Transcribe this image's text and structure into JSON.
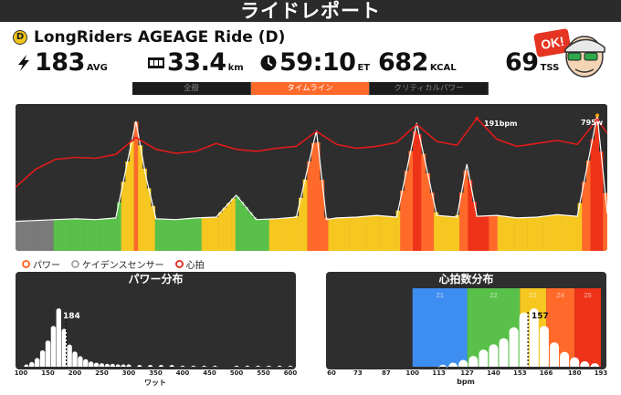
{
  "app": {
    "title": "ライドレポート"
  },
  "ride": {
    "badge": "D",
    "name": "LongRiders AGEAGE Ride (D)"
  },
  "stats": {
    "power": {
      "value": "183",
      "unit": "AVG"
    },
    "distance": {
      "value": "33.4",
      "unit": "km"
    },
    "time": {
      "value": "59:10",
      "unit": "ET"
    },
    "calories": {
      "value": "682",
      "unit": "KCAL"
    },
    "tss": {
      "value": "69",
      "unit": "TSS"
    }
  },
  "avatar": {
    "badge_text": "OK!"
  },
  "tabs": [
    {
      "label": "全般",
      "active": false
    },
    {
      "label": "タイムライン",
      "active": true
    },
    {
      "label": "クリティカルパワー",
      "active": false
    }
  ],
  "timeline": {
    "peak_hr_label": "191bpm",
    "peak_power_label": "795w"
  },
  "legend": {
    "power": "パワー",
    "cadence": "ケイデンスセンサー",
    "heart_rate": "心拍"
  },
  "power_distribution": {
    "title": "パワー分布",
    "marker_label": "184",
    "axis_label": "ワット",
    "ticks": [
      "100",
      "150",
      "200",
      "250",
      "300",
      "350",
      "400",
      "450",
      "500",
      "550",
      "600"
    ]
  },
  "hr_distribution": {
    "title": "心拍数分布",
    "marker_label": "157",
    "axis_label": "bpm",
    "ticks": [
      "60",
      "73",
      "87",
      "100",
      "113",
      "127",
      "140",
      "153",
      "166",
      "180",
      "193"
    ],
    "zones": [
      {
        "label": "Z1",
        "color": "#3d8ef0"
      },
      {
        "label": "Z2",
        "color": "#59c04a"
      },
      {
        "label": "Z3",
        "color": "#f5c720"
      },
      {
        "label": "Z4",
        "color": "#ff6a2b"
      },
      {
        "label": "Z5",
        "color": "#ee3318"
      }
    ]
  },
  "chart_data": [
    {
      "type": "area",
      "title": "",
      "x_unit": "minutes",
      "series": [
        {
          "name": "パワー",
          "x": [
            0,
            2,
            4,
            6,
            8,
            10,
            12,
            13,
            14,
            16,
            18,
            20,
            22,
            24,
            26,
            28,
            30,
            31,
            32,
            34,
            36,
            38,
            40,
            42,
            44,
            45,
            46,
            48,
            50,
            52,
            54,
            56,
            58,
            59
          ],
          "values": [
            165,
            170,
            175,
            180,
            175,
            185,
            760,
            430,
            180,
            175,
            185,
            190,
            320,
            175,
            180,
            190,
            705,
            175,
            185,
            190,
            200,
            190,
            750,
            200,
            190,
            505,
            195,
            200,
            185,
            190,
            205,
            195,
            795,
            210
          ]
        },
        {
          "name": "心拍",
          "x": [
            0,
            2,
            4,
            6,
            8,
            10,
            12,
            14,
            16,
            18,
            20,
            22,
            24,
            26,
            28,
            30,
            32,
            34,
            36,
            38,
            40,
            42,
            44,
            46,
            48,
            50,
            52,
            54,
            56,
            58,
            59
          ],
          "values": [
            122,
            140,
            150,
            152,
            151,
            155,
            172,
            160,
            156,
            158,
            166,
            160,
            158,
            161,
            163,
            178,
            165,
            161,
            163,
            167,
            185,
            168,
            164,
            191,
            170,
            163,
            166,
            169,
            165,
            190,
            176
          ]
        }
      ]
    },
    {
      "type": "bar",
      "title": "パワー分布",
      "xlabel": "ワット",
      "ylabel": "",
      "x": [
        110,
        120,
        130,
        140,
        150,
        160,
        170,
        180,
        190,
        200,
        210,
        220,
        230,
        240,
        250,
        260,
        270,
        280,
        290,
        300,
        320,
        340,
        360,
        380,
        400,
        420,
        440,
        460,
        500,
        520,
        540,
        560,
        580,
        600
      ],
      "values": [
        4,
        8,
        15,
        28,
        45,
        70,
        100,
        65,
        38,
        26,
        18,
        13,
        9,
        7,
        6,
        5,
        5,
        4,
        4,
        4,
        3,
        3,
        3,
        3,
        2,
        2,
        2,
        2,
        2,
        2,
        2,
        2,
        2,
        2
      ],
      "marker": 184,
      "xlim": [
        100,
        600
      ]
    },
    {
      "type": "bar",
      "title": "心拍数分布",
      "xlabel": "bpm",
      "ylabel": "",
      "x": [
        115,
        120,
        125,
        130,
        135,
        140,
        145,
        150,
        155,
        160,
        165,
        170,
        175,
        180,
        185,
        190
      ],
      "values": [
        3,
        6,
        10,
        16,
        26,
        34,
        42,
        58,
        80,
        86,
        60,
        36,
        22,
        14,
        9,
        6
      ],
      "marker": 157,
      "xlim": [
        60,
        193
      ]
    }
  ]
}
